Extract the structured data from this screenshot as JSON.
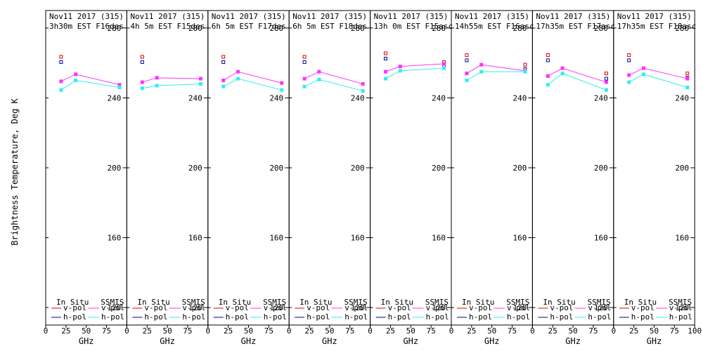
{
  "figure": {
    "ylabel": "Brightness Temperature, Deg K",
    "xlabel": "GHz",
    "colors": {
      "insitu_v": "#dd0000",
      "insitu_h": "#000099",
      "ssmis_v": "#ff33ff",
      "ssmis_h": "#33eeee",
      "axis": "#000000",
      "background": "#ffffff"
    },
    "legend": {
      "insitu_title": "In Situ",
      "ssmis_title": "SSMIS",
      "vpol": "v-pol",
      "hpol": "h-pol"
    }
  },
  "chart_data": [
    {
      "type": "line",
      "title": "Nov11 2017 (315)",
      "subtitle": "3h30m EST F16des",
      "xlabel": "GHz",
      "ylabel": "Brightness Temperature, Deg K",
      "xlim": [
        0,
        100
      ],
      "ylim": [
        110,
        290
      ],
      "xticks": [
        0,
        25,
        50,
        75,
        100
      ],
      "yticks": [
        120,
        160,
        200,
        240,
        280
      ],
      "series": [
        {
          "name": "In Situ v-pol",
          "x": [
            19
          ],
          "y": [
            263.5
          ]
        },
        {
          "name": "In Situ h-pol",
          "x": [
            19
          ],
          "y": [
            260.5
          ]
        },
        {
          "name": "SSMIS v-pol",
          "x": [
            19,
            37,
            91
          ],
          "y": [
            249.5,
            253.5,
            247.5
          ]
        },
        {
          "name": "SSMIS h-pol",
          "x": [
            19,
            37,
            91
          ],
          "y": [
            244.5,
            250,
            246
          ]
        }
      ]
    },
    {
      "type": "line",
      "title": "Nov11 2017 (315)",
      "subtitle": "4h 5m EST F15des",
      "xlabel": "GHz",
      "ylabel": "Brightness Temperature, Deg K",
      "xlim": [
        0,
        100
      ],
      "ylim": [
        110,
        290
      ],
      "xticks": [
        0,
        25,
        50,
        75,
        100
      ],
      "yticks": [
        120,
        160,
        200,
        240,
        280
      ],
      "series": [
        {
          "name": "In Situ v-pol",
          "x": [
            19
          ],
          "y": [
            263.5
          ]
        },
        {
          "name": "In Situ h-pol",
          "x": [
            19
          ],
          "y": [
            260.5
          ]
        },
        {
          "name": "SSMIS v-pol",
          "x": [
            19,
            37,
            91
          ],
          "y": [
            249,
            251.5,
            251
          ]
        },
        {
          "name": "SSMIS h-pol",
          "x": [
            19,
            37,
            91
          ],
          "y": [
            245.5,
            247,
            248
          ]
        }
      ]
    },
    {
      "type": "line",
      "title": "Nov11 2017 (315)",
      "subtitle": "6h 5m EST F17des",
      "xlabel": "GHz",
      "ylabel": "Brightness Temperature, Deg K",
      "xlim": [
        0,
        100
      ],
      "ylim": [
        110,
        290
      ],
      "xticks": [
        0,
        25,
        50,
        75,
        100
      ],
      "yticks": [
        120,
        160,
        200,
        240,
        280
      ],
      "series": [
        {
          "name": "In Situ v-pol",
          "x": [
            19
          ],
          "y": [
            263.5
          ]
        },
        {
          "name": "In Situ h-pol",
          "x": [
            19
          ],
          "y": [
            260.5
          ]
        },
        {
          "name": "SSMIS v-pol",
          "x": [
            19,
            37,
            91
          ],
          "y": [
            250,
            255,
            248.5
          ]
        },
        {
          "name": "SSMIS h-pol",
          "x": [
            19,
            37,
            91
          ],
          "y": [
            246.5,
            251,
            244.5
          ]
        }
      ]
    },
    {
      "type": "line",
      "title": "Nov11 2017 (315)",
      "subtitle": "6h 5m EST F18des",
      "xlabel": "GHz",
      "ylabel": "Brightness Temperature, Deg K",
      "xlim": [
        0,
        100
      ],
      "ylim": [
        110,
        290
      ],
      "xticks": [
        0,
        25,
        50,
        75,
        100
      ],
      "yticks": [
        120,
        160,
        200,
        240,
        280
      ],
      "series": [
        {
          "name": "In Situ v-pol",
          "x": [
            19
          ],
          "y": [
            263.5
          ]
        },
        {
          "name": "In Situ h-pol",
          "x": [
            19
          ],
          "y": [
            260.5
          ]
        },
        {
          "name": "SSMIS v-pol",
          "x": [
            19,
            37,
            91
          ],
          "y": [
            251,
            255,
            248
          ]
        },
        {
          "name": "SSMIS h-pol",
          "x": [
            19,
            37,
            91
          ],
          "y": [
            246.5,
            250.5,
            244
          ]
        }
      ]
    },
    {
      "type": "line",
      "title": "Nov11 2017 (315)",
      "subtitle": "13h 0m EST F15asc",
      "xlabel": "GHz",
      "ylabel": "Brightness Temperature, Deg K",
      "xlim": [
        0,
        100
      ],
      "ylim": [
        110,
        290
      ],
      "xticks": [
        0,
        25,
        50,
        75,
        100
      ],
      "yticks": [
        120,
        160,
        200,
        240,
        280
      ],
      "series": [
        {
          "name": "In Situ v-pol",
          "x": [
            19,
            91
          ],
          "y": [
            265.5,
            260.5
          ]
        },
        {
          "name": "In Situ h-pol",
          "x": [
            19,
            91
          ],
          "y": [
            262.5,
            258.5
          ]
        },
        {
          "name": "SSMIS v-pol",
          "x": [
            19,
            37,
            91
          ],
          "y": [
            255,
            258,
            259.5
          ]
        },
        {
          "name": "SSMIS h-pol",
          "x": [
            19,
            37,
            91
          ],
          "y": [
            251,
            255.5,
            257
          ]
        }
      ]
    },
    {
      "type": "line",
      "title": "Nov11 2017 (315)",
      "subtitle": "14h55m EST F16asc",
      "xlabel": "GHz",
      "ylabel": "Brightness Temperature, Deg K",
      "xlim": [
        0,
        100
      ],
      "ylim": [
        110,
        290
      ],
      "xticks": [
        0,
        25,
        50,
        75,
        100
      ],
      "yticks": [
        120,
        160,
        200,
        240,
        280
      ],
      "series": [
        {
          "name": "In Situ v-pol",
          "x": [
            19,
            91
          ],
          "y": [
            264.5,
            259
          ]
        },
        {
          "name": "In Situ h-pol",
          "x": [
            19,
            91
          ],
          "y": [
            261.5,
            256.5
          ]
        },
        {
          "name": "SSMIS v-pol",
          "x": [
            19,
            37,
            91
          ],
          "y": [
            254,
            259,
            255.5
          ]
        },
        {
          "name": "SSMIS h-pol",
          "x": [
            19,
            37,
            91
          ],
          "y": [
            250,
            255,
            255
          ]
        }
      ]
    },
    {
      "type": "line",
      "title": "Nov11 2017 (315)",
      "subtitle": "17h35m EST F17asc",
      "xlabel": "GHz",
      "ylabel": "Brightness Temperature, Deg K",
      "xlim": [
        0,
        100
      ],
      "ylim": [
        110,
        290
      ],
      "xticks": [
        0,
        25,
        50,
        75,
        100
      ],
      "yticks": [
        120,
        160,
        200,
        240,
        280
      ],
      "series": [
        {
          "name": "In Situ v-pol",
          "x": [
            19,
            91
          ],
          "y": [
            264.5,
            254
          ]
        },
        {
          "name": "In Situ h-pol",
          "x": [
            19,
            91
          ],
          "y": [
            261.5,
            251
          ]
        },
        {
          "name": "SSMIS v-pol",
          "x": [
            19,
            37,
            91
          ],
          "y": [
            252.5,
            257,
            249
          ]
        },
        {
          "name": "SSMIS h-pol",
          "x": [
            19,
            37,
            91
          ],
          "y": [
            247.5,
            254,
            244.5
          ]
        }
      ]
    },
    {
      "type": "line",
      "title": "Nov11 2017 (315)",
      "subtitle": "17h35m EST F18asc",
      "xlabel": "GHz",
      "ylabel": "Brightness Temperature, Deg K",
      "xlim": [
        0,
        100
      ],
      "ylim": [
        110,
        290
      ],
      "xticks": [
        0,
        25,
        50,
        75,
        100
      ],
      "yticks": [
        120,
        160,
        200,
        240,
        280
      ],
      "series": [
        {
          "name": "In Situ v-pol",
          "x": [
            19,
            91
          ],
          "y": [
            264.5,
            254
          ]
        },
        {
          "name": "In Situ h-pol",
          "x": [
            19,
            91
          ],
          "y": [
            261.5,
            251.5
          ]
        },
        {
          "name": "SSMIS v-pol",
          "x": [
            19,
            37,
            91
          ],
          "y": [
            253,
            257,
            251
          ]
        },
        {
          "name": "SSMIS h-pol",
          "x": [
            19,
            37,
            91
          ],
          "y": [
            249,
            253.5,
            246
          ]
        }
      ]
    }
  ]
}
